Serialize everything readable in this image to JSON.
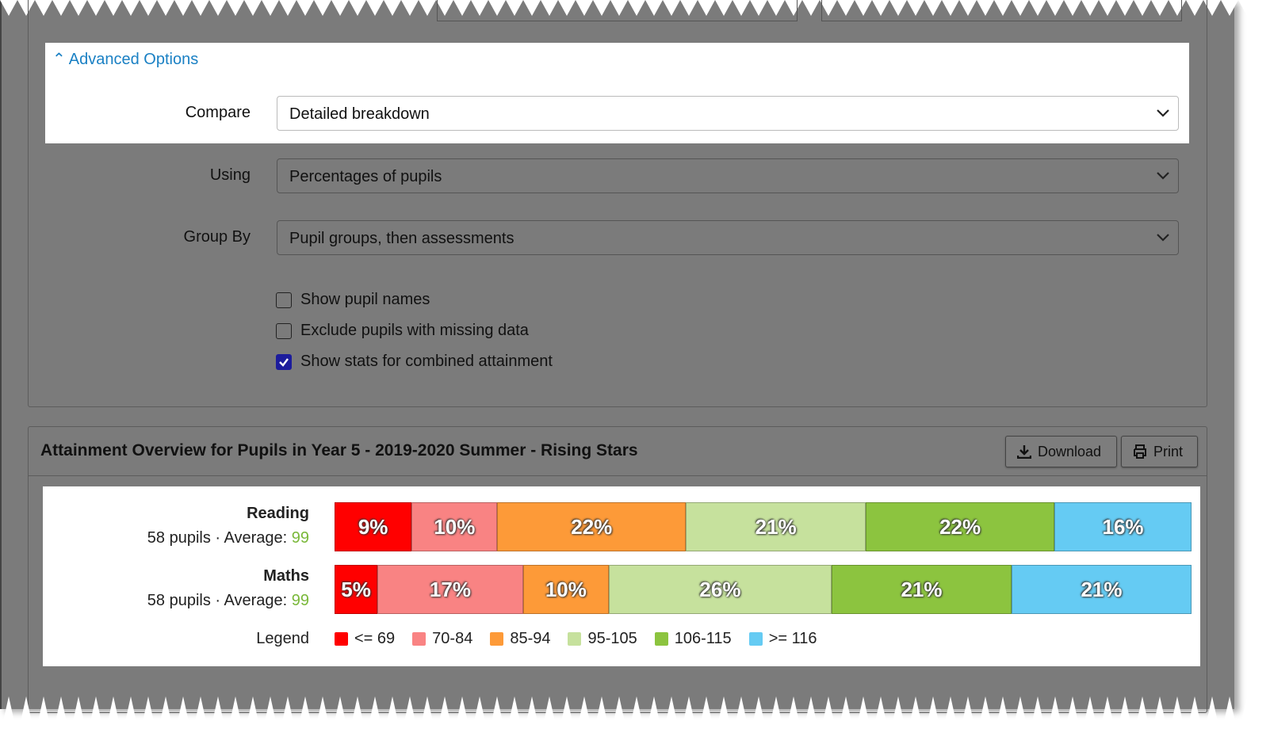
{
  "advanced_options": {
    "toggle": "Advanced Options",
    "fields": [
      {
        "label": "Compare",
        "value": "Detailed breakdown"
      },
      {
        "label": "Using",
        "value": "Percentages of pupils"
      },
      {
        "label": "Group By",
        "value": "Pupil groups, then assessments"
      }
    ],
    "checkboxes": [
      {
        "label": "Show pupil names",
        "checked": false
      },
      {
        "label": "Exclude pupils with missing data",
        "checked": false
      },
      {
        "label": "Show stats for combined attainment",
        "checked": true
      }
    ]
  },
  "panel": {
    "title": "Attainment Overview for Pupils in Year 5 - 2019-2020 Summer - Rising Stars",
    "buttons": [
      "Download",
      "Print"
    ]
  },
  "chart_data": {
    "type": "stacked-bar-horizontal",
    "categories": [
      "Reading",
      "Maths"
    ],
    "category_notes": [
      "58 pupils · Average:",
      "58 pupils · Average:"
    ],
    "averages": [
      99,
      99
    ],
    "legend_title": "Legend",
    "series": [
      {
        "name": "<= 69",
        "color": "#ff0000",
        "values": [
          9,
          5
        ],
        "value_labels": [
          "9%",
          "5%"
        ]
      },
      {
        "name": "70-84",
        "color": "#f98383",
        "values": [
          10,
          17
        ],
        "value_labels": [
          "10%",
          "17%"
        ]
      },
      {
        "name": "85-94",
        "color": "#fd9a38",
        "values": [
          22,
          10
        ],
        "value_labels": [
          "22%",
          "10%"
        ]
      },
      {
        "name": "95-105",
        "color": "#c6e19d",
        "values": [
          21,
          26
        ],
        "value_labels": [
          "21%",
          "26%"
        ]
      },
      {
        "name": "106-115",
        "color": "#8cc43f",
        "values": [
          22,
          21
        ],
        "value_labels": [
          "22%",
          "21%"
        ]
      },
      {
        "name": ">= 116",
        "color": "#65cbf3",
        "values": [
          16,
          21
        ],
        "value_labels": [
          "16%",
          "21%"
        ]
      }
    ]
  }
}
